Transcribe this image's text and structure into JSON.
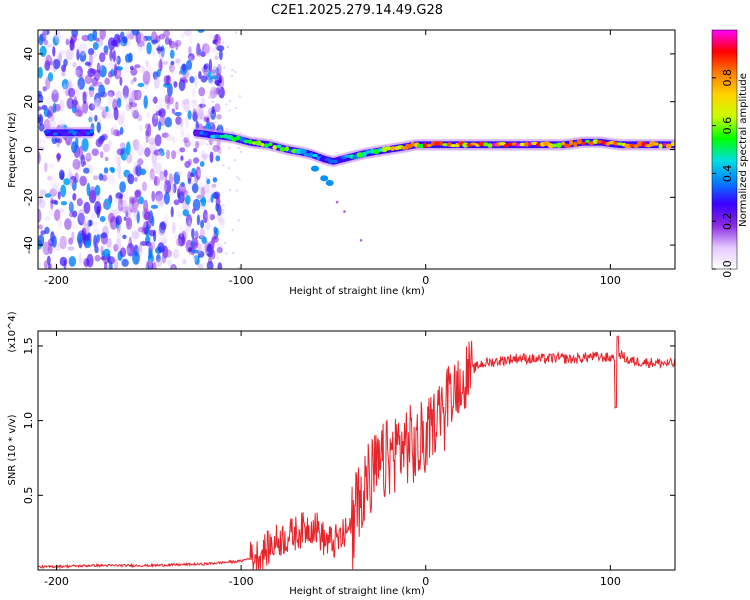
{
  "title": "C2E1.2025.279.14.49.G28",
  "chart_data": [
    {
      "type": "heatmap",
      "xlabel": "Height of straight line (km)",
      "ylabel": "Frequency (Hz)",
      "xlim": [
        -210,
        135
      ],
      "ylim": [
        -50,
        50
      ],
      "xticks": [
        -200,
        -100,
        0,
        100
      ],
      "xtick_labels": [
        "-200",
        "-100",
        "0",
        "100"
      ],
      "yticks": [
        -40,
        -20,
        0,
        20,
        40
      ],
      "ytick_labels": [
        "-40",
        "-20",
        "0",
        "20",
        "40"
      ],
      "colorbar": {
        "label": "Normalized spectral amplitude",
        "range": [
          0,
          1
        ],
        "ticks": [
          0.0,
          0.2,
          0.4,
          0.6,
          0.8
        ],
        "tick_labels": [
          "0.0",
          "0.2",
          "0.4",
          "0.6",
          "0.8"
        ],
        "colors": [
          "#ffffff",
          "#e4c8ff",
          "#8a2be2",
          "#3a00ff",
          "#0080ff",
          "#00e0e0",
          "#00ff00",
          "#c8ff00",
          "#ffd400",
          "#ff8000",
          "#ff0000",
          "#ff00ff"
        ]
      },
      "noise_region_km": [
        -210,
        -110
      ],
      "ridge": {
        "x": [
          -205,
          -190,
          -180,
          -125,
          -115,
          -105,
          -95,
          -85,
          -75,
          -68,
          -62,
          -55,
          -50,
          -45,
          -40,
          -35,
          -28,
          -20,
          -12,
          -5,
          0,
          20,
          40,
          60,
          75,
          85,
          95,
          105,
          115,
          125,
          135
        ],
        "y": [
          7,
          7,
          7,
          7,
          6,
          5,
          3,
          2,
          0,
          -1,
          -2,
          -4,
          -5,
          -4,
          -3,
          -2,
          -1,
          0,
          1,
          2,
          2,
          2,
          2,
          2,
          2,
          3,
          3,
          2,
          2,
          2,
          2
        ],
        "amplitude": [
          0.35,
          0.4,
          0.35,
          0.35,
          0.45,
          0.55,
          0.6,
          0.65,
          0.6,
          0.55,
          0.5,
          0.45,
          0.4,
          0.45,
          0.55,
          0.65,
          0.7,
          0.75,
          0.8,
          0.85,
          0.9,
          0.95,
          0.98,
          1.0,
          0.95,
          0.9,
          0.9,
          0.95,
          0.98,
          0.95,
          0.95
        ]
      },
      "offshoot": {
        "x": [
          -60,
          -55,
          -52
        ],
        "y": [
          -8,
          -12,
          -14
        ]
      }
    },
    {
      "type": "line",
      "xlabel": "Height of straight line (km)",
      "ylabel": "SNR (10 * v/v)",
      "y_multiplier": "(x10^4)",
      "xlim": [
        -210,
        135
      ],
      "ylim": [
        0,
        1.6
      ],
      "xticks": [
        -200,
        -100,
        0,
        100
      ],
      "xtick_labels": [
        "-200",
        "-100",
        "0",
        "100"
      ],
      "yticks": [
        0.5,
        1.0,
        1.5
      ],
      "ytick_labels": [
        "0.5",
        "1.0",
        "1.5"
      ],
      "color": "#e8232a",
      "series": [
        {
          "name": "SNR",
          "x": [
            -210,
            -180,
            -150,
            -120,
            -110,
            -100,
            -95,
            -90,
            -85,
            -80,
            -75,
            -70,
            -65,
            -60,
            -55,
            -50,
            -45,
            -40,
            -35,
            -30,
            -25,
            -20,
            -15,
            -10,
            -5,
            0,
            5,
            10,
            15,
            20,
            25,
            30,
            40,
            50,
            60,
            70,
            80,
            90,
            100,
            105,
            110,
            120,
            135
          ],
          "y": [
            0.02,
            0.03,
            0.03,
            0.04,
            0.05,
            0.06,
            0.08,
            0.1,
            0.15,
            0.2,
            0.22,
            0.25,
            0.28,
            0.3,
            0.2,
            0.18,
            0.22,
            0.3,
            0.55,
            0.62,
            0.68,
            0.75,
            0.82,
            0.85,
            0.8,
            0.9,
            1.0,
            1.15,
            1.22,
            1.28,
            1.34,
            1.38,
            1.4,
            1.42,
            1.41,
            1.42,
            1.41,
            1.43,
            1.42,
            1.45,
            1.4,
            1.39,
            1.38
          ]
        }
      ]
    }
  ]
}
